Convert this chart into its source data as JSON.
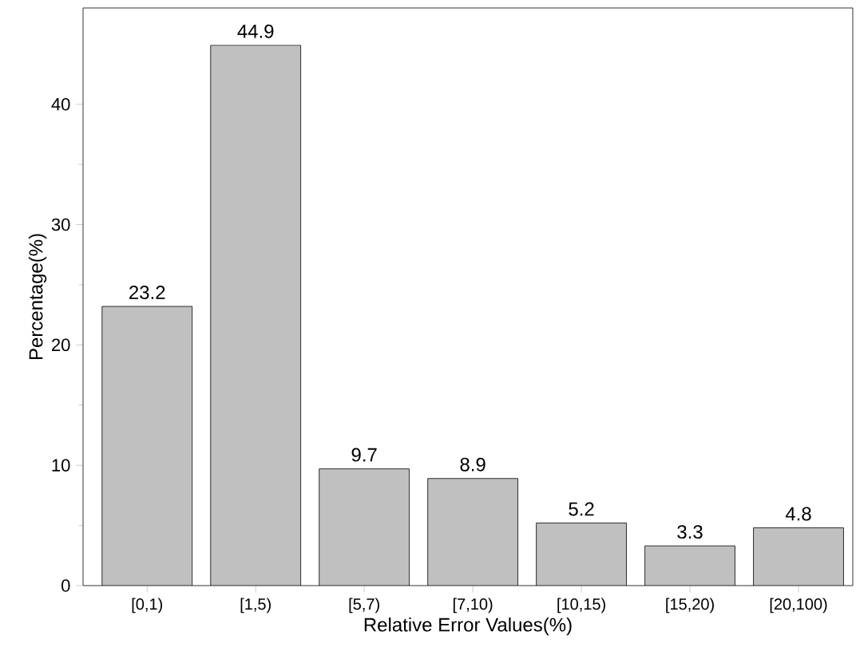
{
  "chart_data": {
    "type": "bar",
    "xlabel": "Relative Error Values(%)",
    "ylabel": "Percentage(%)",
    "categories": [
      "[0,1)",
      "[1,5)",
      "[5,7)",
      "[7,10)",
      "[10,15)",
      "[15,20)",
      "[20,100)"
    ],
    "values": [
      23.2,
      44.9,
      9.7,
      8.9,
      5.2,
      3.3,
      4.8
    ],
    "color": "#c0c0c0",
    "ylim": [
      0,
      48
    ],
    "yticks": [
      0,
      10,
      20,
      30,
      40
    ],
    "data_labels": true
  }
}
